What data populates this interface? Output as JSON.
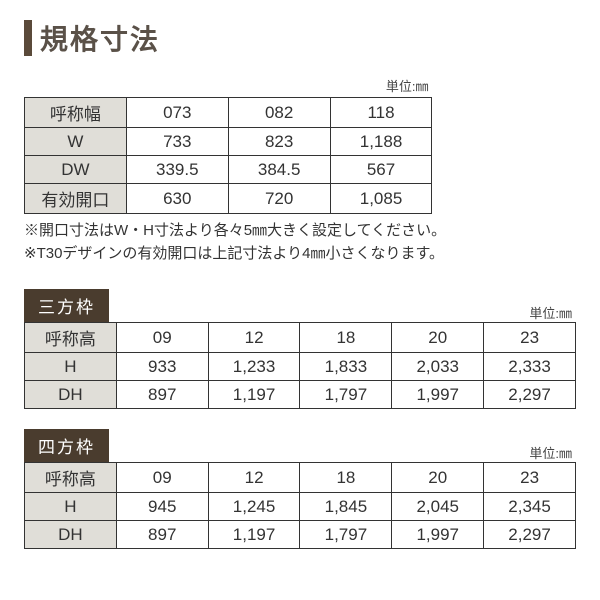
{
  "colors": {
    "heading_bar": "#5a4a3a",
    "heading_text": "#5a5148",
    "badge_bg": "#4a3c2e",
    "badge_text": "#ffffff",
    "row_head_bg": "#e0ded8",
    "border": "#333333",
    "text": "#333333",
    "background": "#ffffff"
  },
  "main_title": "規格寸法",
  "unit_label": "単位:㎜",
  "table1": {
    "columns_header": "呼称幅",
    "columns": [
      "073",
      "082",
      "118"
    ],
    "rows": [
      {
        "label": "W",
        "values": [
          "733",
          "823",
          "1,188"
        ]
      },
      {
        "label": "DW",
        "values": [
          "339.5",
          "384.5",
          "567"
        ]
      },
      {
        "label": "有効開口",
        "values": [
          "630",
          "720",
          "1,085"
        ]
      }
    ]
  },
  "notes": [
    "※開口寸法はW・H寸法より各々5㎜大きく設定してください。",
    "※T30デザインの有効開口は上記寸法より4㎜小さくなります。"
  ],
  "section2": {
    "badge": "三方枠",
    "columns_header": "呼称高",
    "columns": [
      "09",
      "12",
      "18",
      "20",
      "23"
    ],
    "rows": [
      {
        "label": "H",
        "values": [
          "933",
          "1,233",
          "1,833",
          "2,033",
          "2,333"
        ]
      },
      {
        "label": "DH",
        "values": [
          "897",
          "1,197",
          "1,797",
          "1,997",
          "2,297"
        ]
      }
    ]
  },
  "section3": {
    "badge": "四方枠",
    "columns_header": "呼称高",
    "columns": [
      "09",
      "12",
      "18",
      "20",
      "23"
    ],
    "rows": [
      {
        "label": "H",
        "values": [
          "945",
          "1,245",
          "1,845",
          "2,045",
          "2,345"
        ]
      },
      {
        "label": "DH",
        "values": [
          "897",
          "1,197",
          "1,797",
          "1,997",
          "2,297"
        ]
      }
    ]
  }
}
